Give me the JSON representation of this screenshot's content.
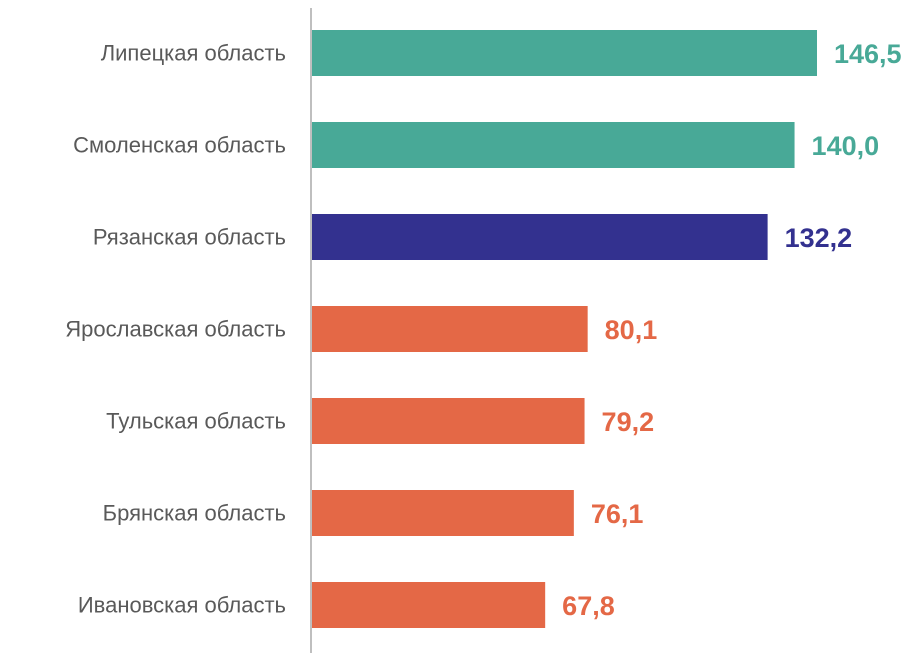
{
  "chart_data": {
    "type": "bar",
    "orientation": "horizontal",
    "categories": [
      "Липецкая область",
      "Смоленская область",
      "Рязанская область",
      "Ярославская область",
      "Тульская область",
      "Брянская область",
      "Ивановская область"
    ],
    "values": [
      146.5,
      140.0,
      132.2,
      80.1,
      79.2,
      76.1,
      67.8
    ],
    "value_labels": [
      "146,5",
      "140,0",
      "132,2",
      "80,1",
      "79,2",
      "76,1",
      "67,8"
    ],
    "colors": [
      "#48a997",
      "#48a997",
      "#33318f",
      "#e46846",
      "#e46846",
      "#e46846",
      "#e46846"
    ],
    "xlim": [
      0,
      146.5
    ],
    "grid": false,
    "legend": "none",
    "axis_color": "#bfbfbf",
    "category_label_color": "#595959"
  }
}
